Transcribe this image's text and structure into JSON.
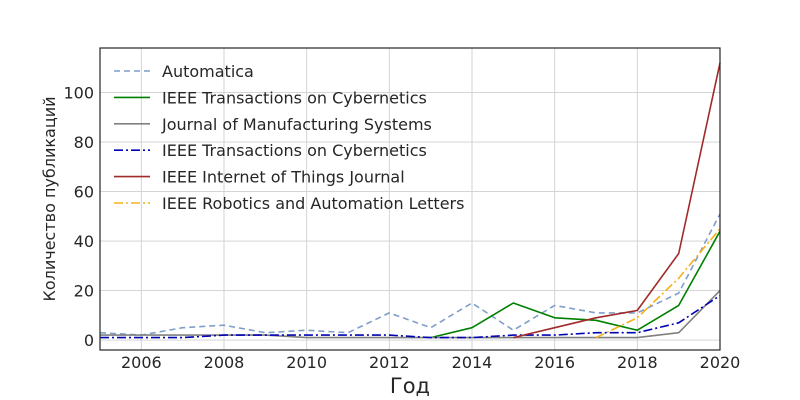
{
  "chart_data": {
    "type": "line",
    "xlabel": "Год",
    "ylabel": "Количество публикаций",
    "xlim": [
      2005,
      2020
    ],
    "ylim": [
      -4,
      118
    ],
    "xticks": [
      2006,
      2008,
      2010,
      2012,
      2014,
      2016,
      2018,
      2020
    ],
    "yticks": [
      0,
      20,
      40,
      60,
      80,
      100
    ],
    "grid": true,
    "legend_position": "top-left",
    "series": [
      {
        "name": "Automatica",
        "color": "#7f9ec9",
        "style": "dashed",
        "x": [
          2005,
          2006,
          2007,
          2008,
          2009,
          2010,
          2011,
          2012,
          2013,
          2014,
          2015,
          2016,
          2017,
          2018,
          2019,
          2020
        ],
        "y": [
          3,
          2,
          5,
          6,
          3,
          4,
          3,
          11,
          5,
          15,
          4,
          14,
          11,
          11,
          19,
          51
        ]
      },
      {
        "name": "IEEE Transactions on Cybernetics",
        "color": "#008000",
        "style": "solid",
        "x": [
          2013,
          2014,
          2015,
          2016,
          2017,
          2018,
          2019,
          2020
        ],
        "y": [
          1,
          5,
          15,
          9,
          8,
          4,
          14,
          44
        ]
      },
      {
        "name": "Journal of Manufacturing Systems",
        "color": "#808080",
        "style": "solid",
        "x": [
          2005,
          2006,
          2007,
          2008,
          2009,
          2010,
          2011,
          2012,
          2013,
          2014,
          2015,
          2016,
          2017,
          2018,
          2019,
          2020
        ],
        "y": [
          2,
          2,
          2,
          2,
          2,
          1,
          1,
          1,
          1,
          1,
          1,
          1,
          1,
          1,
          3,
          20
        ]
      },
      {
        "name": "IEEE Transactions on Cybernetics",
        "color": "#0000b3",
        "style": "dashdot",
        "x": [
          2005,
          2006,
          2007,
          2008,
          2009,
          2010,
          2011,
          2012,
          2013,
          2014,
          2015,
          2016,
          2017,
          2018,
          2019,
          2020
        ],
        "y": [
          1,
          1,
          1,
          2,
          2,
          2,
          2,
          2,
          1,
          1,
          2,
          2,
          3,
          3,
          7,
          18
        ]
      },
      {
        "name": "IEEE Internet of Things Journal",
        "color": "#a12a2a",
        "style": "solid",
        "x": [
          2015,
          2016,
          2017,
          2018,
          2019,
          2020
        ],
        "y": [
          1,
          5,
          9,
          12,
          35,
          112
        ]
      },
      {
        "name": "IEEE Robotics and Automation Letters",
        "color": "#f5b01a",
        "style": "dashdot",
        "x": [
          2017,
          2018,
          2019,
          2020
        ],
        "y": [
          1,
          9,
          25,
          45
        ]
      }
    ]
  }
}
